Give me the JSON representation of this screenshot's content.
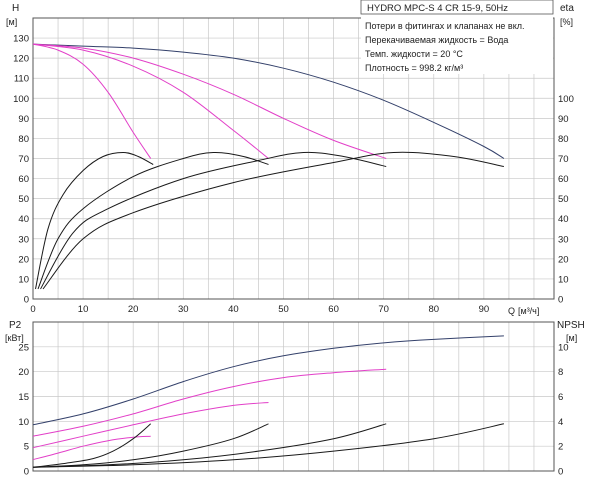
{
  "colors": {
    "grid": "#c8c8c8",
    "axis": "#555555",
    "navy": "#33406a",
    "magenta": "#e23fc8",
    "black": "#1a1a1a",
    "text": "#222222"
  },
  "chart_data": [
    {
      "type": "line",
      "title": "HYDRO MPC-S 4 CR 15-9, 50Hz",
      "annotations": [
        "Потери в фитингах и клапанах не вкл.",
        "Перекачиваемая жидкость = Вода",
        "Темп. жидкости = 20 °C",
        "Плотность = 998.2 кг/м³"
      ],
      "ylabel": "H",
      "yunit": "[м]",
      "y2label": "eta",
      "y2unit": "[%]",
      "xlabel": "Q",
      "xunit": "[м³/ч]",
      "xlim": [
        0,
        104
      ],
      "ylim": [
        0,
        140
      ],
      "y2lim": [
        0,
        140
      ],
      "xticks": [
        0,
        10,
        20,
        30,
        40,
        50,
        60,
        70,
        80,
        90
      ],
      "yticks": [
        0,
        10,
        20,
        30,
        40,
        50,
        60,
        70,
        80,
        90,
        100,
        110,
        120,
        130
      ],
      "y2ticks": [
        0,
        10,
        20,
        30,
        40,
        50,
        60,
        70,
        80,
        90,
        100
      ],
      "grid": true,
      "series": [
        {
          "kind": "head-max",
          "color": "navy",
          "axis": "y",
          "x": [
            0,
            10,
            20,
            30,
            40,
            50,
            60,
            70,
            80,
            90,
            94
          ],
          "y": [
            127,
            126,
            125,
            123,
            120,
            115,
            108,
            99,
            88,
            76,
            70
          ]
        },
        {
          "kind": "head-1",
          "color": "magenta",
          "axis": "y",
          "x": [
            0,
            5,
            10,
            15,
            20,
            23.5
          ],
          "y": [
            127,
            124,
            117,
            103,
            83,
            70
          ]
        },
        {
          "kind": "head-2",
          "color": "magenta",
          "axis": "y",
          "x": [
            0,
            10,
            20,
            30,
            40,
            47
          ],
          "y": [
            127,
            124,
            116,
            103,
            84,
            70
          ]
        },
        {
          "kind": "head-3",
          "color": "magenta",
          "axis": "y",
          "x": [
            0,
            10,
            20,
            30,
            40,
            50,
            60,
            70.5
          ],
          "y": [
            127,
            125,
            120,
            112,
            102,
            90,
            79,
            70
          ]
        },
        {
          "kind": "eta-1",
          "color": "black",
          "axis": "y2",
          "x": [
            0.5,
            3,
            6,
            10,
            14,
            18,
            21,
            24
          ],
          "y": [
            5,
            35,
            52,
            64,
            71,
            73,
            71,
            67
          ]
        },
        {
          "kind": "eta-2",
          "color": "black",
          "axis": "y2",
          "x": [
            1,
            5,
            10,
            20,
            30,
            36,
            42,
            47
          ],
          "y": [
            5,
            30,
            45,
            61,
            70,
            73,
            71,
            67
          ]
        },
        {
          "kind": "eta-3",
          "color": "black",
          "axis": "y2",
          "x": [
            1.5,
            8,
            15,
            30,
            45,
            54,
            62,
            70.5
          ],
          "y": [
            5,
            33,
            45,
            60,
            69,
            73,
            71,
            66
          ]
        },
        {
          "kind": "eta-4",
          "color": "black",
          "axis": "y2",
          "x": [
            2,
            10,
            20,
            40,
            60,
            72,
            84,
            94
          ],
          "y": [
            5,
            30,
            43,
            58,
            68,
            73,
            71,
            66
          ]
        }
      ]
    },
    {
      "type": "line",
      "ylabel": "P2",
      "yunit": "[кВт]",
      "y2label": "NPSH",
      "y2unit": "[м]",
      "xlim": [
        0,
        104
      ],
      "ylim": [
        0,
        30
      ],
      "y2lim": [
        0,
        12
      ],
      "yticks": [
        0,
        5,
        10,
        15,
        20,
        25
      ],
      "y2ticks": [
        0,
        2,
        4,
        6,
        8,
        10
      ],
      "grid": true,
      "series": [
        {
          "kind": "p2-max",
          "color": "navy",
          "axis": "y",
          "x": [
            0,
            10,
            20,
            30,
            40,
            50,
            60,
            70,
            80,
            94
          ],
          "y": [
            9.3,
            11.5,
            14.5,
            18,
            21,
            23.2,
            24.7,
            25.8,
            26.5,
            27.2
          ]
        },
        {
          "kind": "p2-3",
          "color": "magenta",
          "axis": "y",
          "x": [
            0,
            10,
            20,
            30,
            40,
            50,
            60,
            70.5
          ],
          "y": [
            7,
            9,
            11.5,
            14.5,
            17,
            18.8,
            19.8,
            20.5
          ]
        },
        {
          "kind": "p2-2",
          "color": "magenta",
          "axis": "y",
          "x": [
            0,
            10,
            20,
            30,
            40,
            47
          ],
          "y": [
            4.7,
            7,
            9.3,
            11.5,
            13.2,
            13.8
          ]
        },
        {
          "kind": "p2-1",
          "color": "magenta",
          "axis": "y",
          "x": [
            0,
            5,
            10,
            15,
            20,
            23.5
          ],
          "y": [
            2.3,
            3.6,
            5,
            6.1,
            6.8,
            7
          ]
        },
        {
          "kind": "npsh-1",
          "color": "black",
          "axis": "y2",
          "x": [
            0,
            6,
            12,
            16,
            20,
            23.5
          ],
          "y": [
            0.3,
            0.6,
            1,
            1.6,
            2.6,
            3.8
          ]
        },
        {
          "kind": "npsh-2",
          "color": "black",
          "axis": "y2",
          "x": [
            0,
            10,
            20,
            30,
            40,
            47
          ],
          "y": [
            0.3,
            0.5,
            0.9,
            1.6,
            2.6,
            3.8
          ]
        },
        {
          "kind": "npsh-3",
          "color": "black",
          "axis": "y2",
          "x": [
            0,
            15,
            30,
            45,
            60,
            70.5
          ],
          "y": [
            0.3,
            0.5,
            0.9,
            1.6,
            2.6,
            3.8
          ]
        },
        {
          "kind": "npsh-4",
          "color": "black",
          "axis": "y2",
          "x": [
            0,
            20,
            40,
            60,
            80,
            94
          ],
          "y": [
            0.3,
            0.5,
            0.9,
            1.6,
            2.6,
            3.8
          ]
        }
      ]
    }
  ]
}
